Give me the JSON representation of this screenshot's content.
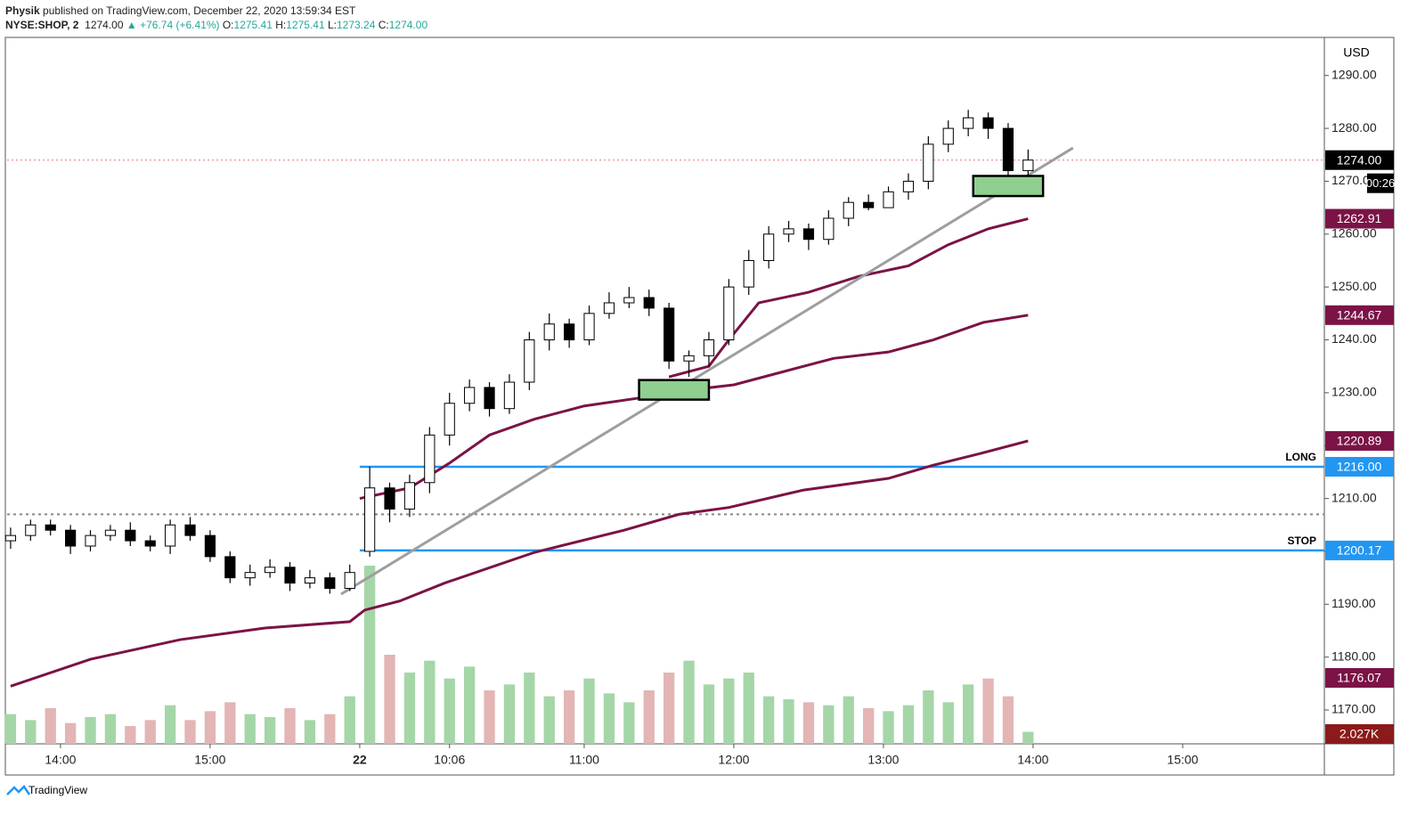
{
  "chart_data": {
    "type": "candlestick",
    "header": {
      "author": "Physik",
      "published": "published on TradingView.com, December 22, 2020 13:59:34 EST",
      "symbol": "NYSE:SHOP, 2",
      "change": "▲ +76.74 (+6.41%)",
      "o_label": "O:",
      "o": "1275.41",
      "h_label": "H:",
      "h": "1275.41",
      "l_label": "L:",
      "l": "1273.24",
      "c_label": "C:",
      "c": "1274.00"
    },
    "currency": "USD",
    "footer": "TradingView",
    "x": [
      -70,
      -66,
      -62,
      -58,
      -54,
      -50,
      -46,
      -42,
      -38,
      -34,
      -30,
      -26,
      -22,
      -18,
      -14,
      -10,
      -6,
      -2,
      2,
      6,
      10,
      14,
      18,
      22,
      26,
      30,
      34,
      38,
      42,
      46,
      50,
      54,
      58,
      62,
      66,
      70,
      74,
      78,
      82,
      86,
      90,
      94,
      98,
      102,
      106,
      110,
      114,
      118,
      122,
      126,
      130,
      134
    ],
    "open": [
      1202,
      1203,
      1205,
      1204,
      1201,
      1203,
      1204,
      1202,
      1201,
      1205,
      1203,
      1199,
      1195,
      1196,
      1197,
      1194,
      1195,
      1193,
      1200,
      1212,
      1208,
      1213,
      1222,
      1228,
      1231,
      1227,
      1232,
      1240,
      1243,
      1240,
      1245,
      1247,
      1248,
      1246,
      1236,
      1237,
      1240,
      1250,
      1255,
      1260,
      1261,
      1259,
      1263,
      1266,
      1265,
      1268,
      1270,
      1277,
      1280,
      1282,
      1280,
      1272
    ],
    "high": [
      1204.5,
      1206,
      1206,
      1205,
      1204,
      1205,
      1205.5,
      1203,
      1206,
      1206.5,
      1204,
      1200,
      1197.5,
      1198.5,
      1198,
      1196.5,
      1196,
      1197.5,
      1216,
      1213,
      1214.5,
      1223.5,
      1230,
      1232.5,
      1232,
      1233.5,
      1241.5,
      1245,
      1244,
      1246.5,
      1249,
      1250,
      1249.5,
      1247,
      1238,
      1241.5,
      1251.5,
      1257,
      1261.5,
      1262.5,
      1262,
      1264.5,
      1267,
      1267.5,
      1269,
      1271.5,
      1278.5,
      1281.5,
      1283.5,
      1283,
      1281,
      1276
    ],
    "low": [
      1200.5,
      1202,
      1203,
      1199.5,
      1200,
      1202,
      1201,
      1200,
      1199.5,
      1202,
      1198,
      1194,
      1193.5,
      1195,
      1192.5,
      1193,
      1192,
      1192.5,
      1199,
      1205.5,
      1206.5,
      1211,
      1220,
      1226.5,
      1225.5,
      1226,
      1230.5,
      1238,
      1238.5,
      1239,
      1244,
      1246,
      1244.5,
      1234.5,
      1233,
      1235,
      1239,
      1248.5,
      1253.5,
      1258.5,
      1257,
      1258,
      1261.5,
      1264.5,
      1265,
      1266.5,
      1268.5,
      1275.5,
      1278.5,
      1278,
      1268,
      1271
    ],
    "close": [
      1203,
      1205,
      1204,
      1201,
      1203,
      1204,
      1202,
      1201,
      1205,
      1203,
      1199,
      1195,
      1196,
      1197,
      1194,
      1195,
      1193,
      1196,
      1212,
      1208,
      1213,
      1222,
      1228,
      1231,
      1227,
      1232,
      1240,
      1243,
      1240,
      1245,
      1247,
      1248,
      1246,
      1236,
      1237,
      1240,
      1250,
      1255,
      1260,
      1261,
      1259,
      1263,
      1266,
      1265,
      1268,
      1270,
      1277,
      1280,
      1282,
      1280,
      1272,
      1274
    ],
    "volume": [
      5000,
      4000,
      6000,
      3500,
      4500,
      5000,
      3000,
      4000,
      6500,
      4000,
      5500,
      7000,
      5000,
      4500,
      6000,
      4000,
      5000,
      8000,
      30000,
      15000,
      12000,
      14000,
      11000,
      13000,
      9000,
      10000,
      12000,
      8000,
      9000,
      11000,
      8500,
      7000,
      9000,
      12000,
      14000,
      10000,
      11000,
      12000,
      8000,
      7500,
      7000,
      6500,
      8000,
      6000,
      5500,
      6500,
      9000,
      7000,
      10000,
      11000,
      8000,
      2027
    ],
    "volume_last_label": "2.027K",
    "volume_lim": [
      0,
      36000
    ],
    "up_color": "#ffffff",
    "down_color": "#000000",
    "volume_up_color": "#a5d6a7",
    "volume_down_color": "#e3b5b5",
    "xlim": [
      -70.7,
      193.4
    ],
    "xticks": [
      {
        "value": -60,
        "label": "14:00"
      },
      {
        "value": -30,
        "label": "15:00"
      },
      {
        "value": 0,
        "label": "22"
      },
      {
        "value": 18,
        "label": "10:06"
      },
      {
        "value": 45,
        "label": "11:00"
      },
      {
        "value": 75,
        "label": "12:00"
      },
      {
        "value": 105,
        "label": "13:00"
      },
      {
        "value": 135,
        "label": "14:00"
      },
      {
        "value": 165,
        "label": "15:00"
      }
    ],
    "ylim": [
      1163.6,
      1297.2
    ],
    "yticks": [
      {
        "value": 1170,
        "label": "1170.00"
      },
      {
        "value": 1180,
        "label": "1180.00"
      },
      {
        "value": 1190,
        "label": "1190.00"
      },
      {
        "value": 1200,
        "label": "1200.00"
      },
      {
        "value": 1210,
        "label": "1210.00"
      },
      {
        "value": 1220,
        "label": "1220.00"
      },
      {
        "value": 1230,
        "label": "1230.00"
      },
      {
        "value": 1240,
        "label": "1240.00"
      },
      {
        "value": 1250,
        "label": "1250.00"
      },
      {
        "value": 1260,
        "label": "1260.00"
      },
      {
        "value": 1270,
        "label": "1270.00"
      },
      {
        "value": 1280,
        "label": "1280.00"
      },
      {
        "value": 1290,
        "label": "1290.00"
      }
    ],
    "last_price": {
      "value": 1274,
      "label": "1274.00",
      "color": "#000000",
      "line_color": "#e57373"
    },
    "countdown": "00:26",
    "ma_series": [
      {
        "color": "#7b1346",
        "x": [
          62,
          70,
          74,
          80,
          90,
          100,
          110,
          118,
          126,
          134
        ],
        "values": [
          1233,
          1235,
          1240,
          1247,
          1249,
          1252,
          1254,
          1258,
          1261,
          1262.91
        ],
        "last_label": "1262.91"
      },
      {
        "color": "#7b1346",
        "x": [
          0,
          10,
          18,
          26,
          35,
          45,
          56,
          66,
          75,
          85,
          95,
          106,
          115,
          125,
          134
        ],
        "values": [
          1210,
          1212,
          1216.7,
          1222,
          1225,
          1227.5,
          1229,
          1230.5,
          1231.5,
          1234,
          1236.5,
          1237.7,
          1240,
          1243.3,
          1244.67
        ],
        "last_label": "1244.67"
      },
      {
        "color": "#7b1346",
        "x": [
          -70,
          -54,
          -36,
          -19,
          -2,
          1,
          8,
          17,
          35,
          53,
          64,
          74,
          89,
          106,
          115,
          124,
          134
        ],
        "values": [
          1174.5,
          1179.6,
          1183.3,
          1185.5,
          1186.7,
          1188.9,
          1190.6,
          1194,
          1199.8,
          1204,
          1207,
          1208.3,
          1211.6,
          1213.8,
          1216.3,
          1218.4,
          1220.89
        ],
        "last_label": "1220.89"
      }
    ],
    "price_labels": [
      {
        "value": 1176.07,
        "label": "1176.07",
        "color": "#7b1346"
      }
    ],
    "levels": [
      {
        "name": "LONG",
        "value": 1216,
        "label": "1216.00",
        "color": "#2196f3",
        "x0": 0
      },
      {
        "name": "STOP",
        "value": 1200.17,
        "label": "1200.17",
        "color": "#2196f3",
        "x0": 0
      }
    ],
    "reference_lines": [
      {
        "value": 1207,
        "color": "#888888"
      }
    ],
    "trendline": {
      "x": [
        -3.75,
        143
      ],
      "y": [
        1191.9,
        1276.3
      ],
      "color": "#9e9e9e"
    },
    "boxes": [
      {
        "x": [
          56,
          70
        ],
        "y": [
          1228.7,
          1232.4
        ],
        "color": "#8fcf8f"
      },
      {
        "x": [
          123,
          137
        ],
        "y": [
          1267.2,
          1271
        ],
        "color": "#8fcf8f"
      }
    ]
  }
}
